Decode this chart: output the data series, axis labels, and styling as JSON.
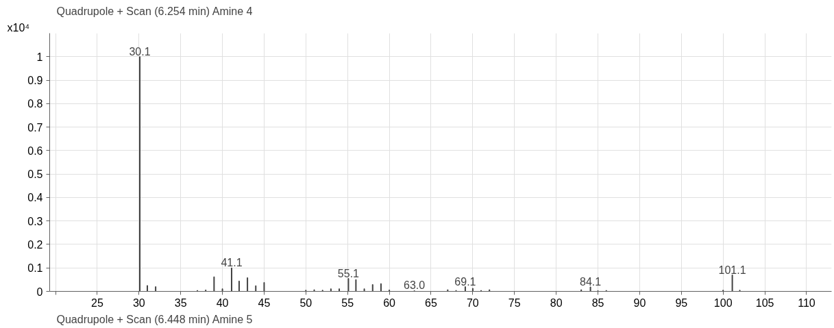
{
  "chart_data": {
    "type": "bar",
    "title": "Quadrupole + Scan  (6.254 min) Amine 4",
    "ylabel": "x10⁴",
    "x": [
      30.1,
      31,
      32,
      37,
      38,
      39,
      40,
      41.1,
      42,
      43,
      44,
      45,
      50,
      51,
      52,
      53,
      54,
      55.1,
      56,
      57,
      58,
      59,
      60,
      63.0,
      67,
      68,
      69.1,
      70,
      71,
      72,
      83,
      84.1,
      85,
      86,
      100,
      101.1,
      102
    ],
    "values": [
      1.0,
      0.025,
      0.02,
      0.004,
      0.006,
      0.062,
      0.011,
      0.1,
      0.044,
      0.058,
      0.024,
      0.038,
      0.005,
      0.007,
      0.005,
      0.011,
      0.011,
      0.055,
      0.05,
      0.011,
      0.029,
      0.033,
      0.006,
      0.003,
      0.007,
      0.004,
      0.02,
      0.013,
      0.004,
      0.007,
      0.007,
      0.019,
      0.003,
      0.004,
      0.005,
      0.07,
      0.005
    ],
    "color": "#404040",
    "xlim": [
      19.3,
      113
    ],
    "ylim": [
      0,
      1.1
    ],
    "xticks": [
      {
        "value": 20,
        "label": null
      },
      25,
      30,
      35,
      40,
      45,
      50,
      55,
      60,
      65,
      70,
      75,
      80,
      85,
      90,
      95,
      100,
      105,
      110
    ],
    "yticks": [
      0,
      0.1,
      0.2,
      0.3,
      0.4,
      0.5,
      0.6,
      0.7,
      0.8,
      0.9,
      1
    ],
    "grid": true,
    "annotations": [
      {
        "text": "30.1",
        "x": 30.1,
        "y": 1.0
      },
      {
        "text": "41.1",
        "x": 41.1,
        "y": 0.1
      },
      {
        "text": "55.1",
        "x": 55.1,
        "y": 0.055
      },
      {
        "text": "63.0",
        "x": 63.0,
        "y": 0.003
      },
      {
        "text": "69.1",
        "x": 69.1,
        "y": 0.02
      },
      {
        "text": "84.1",
        "x": 84.1,
        "y": 0.019
      },
      {
        "text": "101.1",
        "x": 101.1,
        "y": 0.07
      },
      "Quadrupole + Scan  (6.448 min) Amine 5"
    ]
  }
}
